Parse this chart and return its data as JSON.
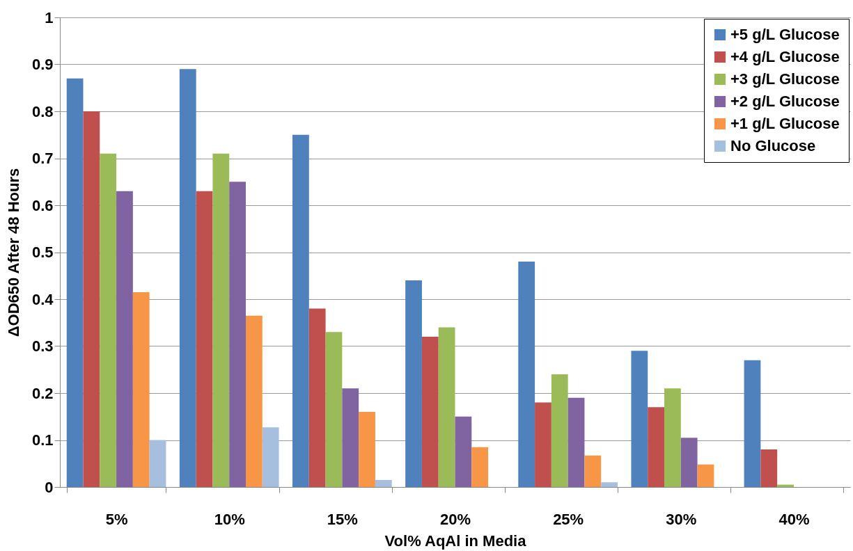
{
  "chart_data": {
    "type": "bar",
    "xlabel": "Vol% AqAl in Media",
    "ylabel": "ΔOD650 After 48 Hours",
    "categories": [
      "5%",
      "10%",
      "15%",
      "20%",
      "25%",
      "30%",
      "40%"
    ],
    "series": [
      {
        "name": "+5 g/L Glucose",
        "color": "#4f81bd",
        "values": [
          0.87,
          0.89,
          0.75,
          0.44,
          0.48,
          0.29,
          0.27
        ]
      },
      {
        "name": "+4 g/L Glucose",
        "color": "#c0504d",
        "values": [
          0.8,
          0.63,
          0.38,
          0.32,
          0.18,
          0.17,
          0.08
        ]
      },
      {
        "name": "+3 g/L Glucose",
        "color": "#9bbb59",
        "values": [
          0.71,
          0.71,
          0.33,
          0.34,
          0.24,
          0.21,
          0.005
        ]
      },
      {
        "name": "+2 g/L Glucose",
        "color": "#8064a2",
        "values": [
          0.63,
          0.65,
          0.21,
          0.15,
          0.19,
          0.105,
          null
        ]
      },
      {
        "name": "+1 g/L Glucose",
        "color": "#f79646",
        "values": [
          0.415,
          0.365,
          0.16,
          0.085,
          0.067,
          0.048,
          null
        ]
      },
      {
        "name": "No Glucose",
        "color": "#a7bfde",
        "values": [
          0.1,
          0.127,
          0.015,
          null,
          0.01,
          null,
          null
        ]
      }
    ],
    "ylim": [
      0,
      1
    ],
    "yticks": [
      0,
      0.1,
      0.2,
      0.3,
      0.4,
      0.5,
      0.6,
      0.7,
      0.8,
      0.9,
      1
    ],
    "grid": "y",
    "legend": "top right"
  }
}
